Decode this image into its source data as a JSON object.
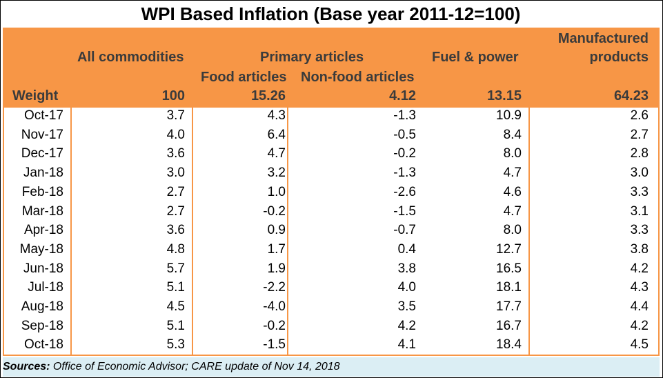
{
  "chart_data": {
    "type": "table",
    "title": "WPI Based Inflation (Base year 2011-12=100)",
    "headers": {
      "all_commodities": "All commodities",
      "primary_articles": "Primary articles",
      "food_articles": "Food articles",
      "non_food_articles": "Non-food articles",
      "fuel_power": "Fuel & power",
      "manufactured_line1": "Manufactured",
      "manufactured_line2": "products",
      "weight_label": "Weight"
    },
    "weights": [
      "100",
      "15.26",
      "4.12",
      "13.15",
      "64.23"
    ],
    "rows": [
      {
        "month": "Oct-17",
        "values": [
          "3.7",
          "4.3",
          "-1.3",
          "10.9",
          "2.6"
        ]
      },
      {
        "month": "Nov-17",
        "values": [
          "4.0",
          "6.4",
          "-0.5",
          "8.4",
          "2.7"
        ]
      },
      {
        "month": "Dec-17",
        "values": [
          "3.6",
          "4.7",
          "-0.2",
          "8.0",
          "2.8"
        ]
      },
      {
        "month": "Jan-18",
        "values": [
          "3.0",
          "3.2",
          "-1.3",
          "4.7",
          "3.0"
        ]
      },
      {
        "month": "Feb-18",
        "values": [
          "2.7",
          "1.0",
          "-2.6",
          "4.6",
          "3.3"
        ]
      },
      {
        "month": "Mar-18",
        "values": [
          "2.7",
          "-0.2",
          "-1.5",
          "4.7",
          "3.1"
        ]
      },
      {
        "month": "Apr-18",
        "values": [
          "3.6",
          "0.9",
          "-0.7",
          "8.0",
          "3.3"
        ]
      },
      {
        "month": "May-18",
        "values": [
          "4.8",
          "1.7",
          "0.4",
          "12.7",
          "3.8"
        ]
      },
      {
        "month": "Jun-18",
        "values": [
          "5.7",
          "1.9",
          "3.8",
          "16.5",
          "4.2"
        ]
      },
      {
        "month": "Jul-18",
        "values": [
          "5.1",
          "-2.2",
          "4.0",
          "18.1",
          "4.3"
        ]
      },
      {
        "month": "Aug-18",
        "values": [
          "4.5",
          "-4.0",
          "3.5",
          "17.7",
          "4.4"
        ]
      },
      {
        "month": "Sep-18",
        "values": [
          "5.1",
          "-0.2",
          "4.2",
          "16.7",
          "4.2"
        ]
      },
      {
        "month": "Oct-18",
        "values": [
          "5.3",
          "-1.5",
          "4.1",
          "18.4",
          "4.5"
        ]
      }
    ]
  },
  "footer": {
    "label": "Sources:",
    "text": " Office of Economic Advisor; CARE update of Nov 14, 2018"
  },
  "colors": {
    "header_bg": "#f79646",
    "footer_bg": "#dbeef4"
  }
}
